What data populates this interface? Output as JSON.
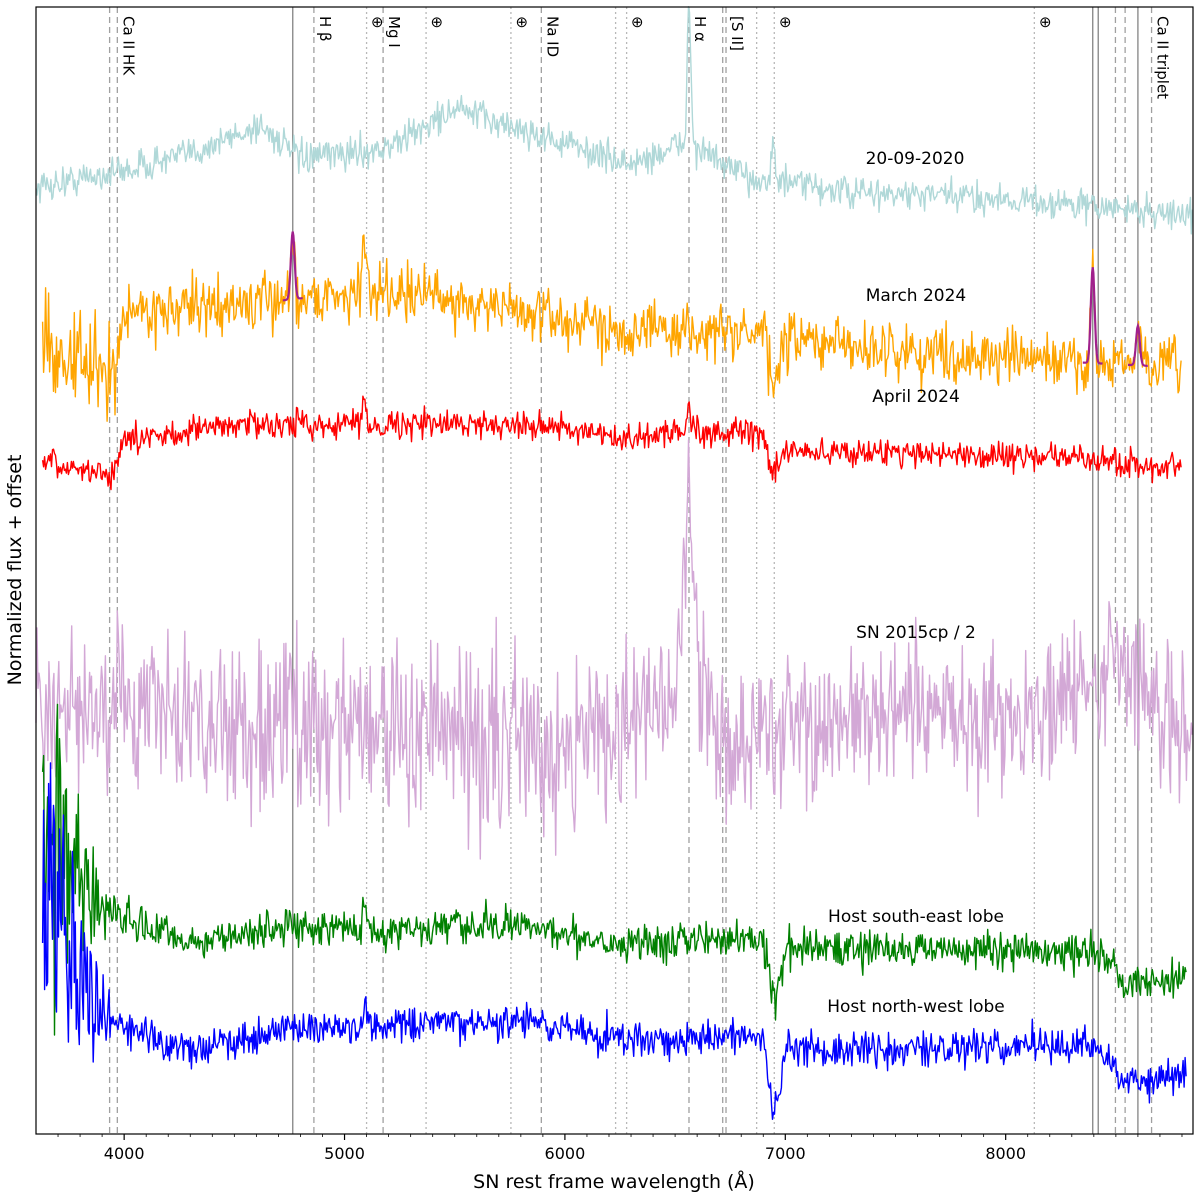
{
  "chart_data": {
    "type": "line",
    "title": "",
    "xlabel": "SN rest frame wavelength (Å)",
    "ylabel": "Normalized flux + offset",
    "xlim": [
      3600,
      8850
    ],
    "ylim": [
      0,
      10
    ],
    "grid": false,
    "x_ticks": [
      4000,
      5000,
      6000,
      7000,
      8000
    ],
    "x_tick_labels": [
      "4000",
      "5000",
      "6000",
      "7000",
      "8000"
    ],
    "line_markers": [
      {
        "label": "Ca II HK",
        "x": [
          3934,
          3969
        ],
        "style": "dashed"
      },
      {
        "label": "H β",
        "x": [
          4861
        ],
        "style": "dashed"
      },
      {
        "label": "⊕",
        "x": [
          5100
        ],
        "style": "dotted"
      },
      {
        "label": "Mg I",
        "x": [
          5175
        ],
        "style": "dashed"
      },
      {
        "label": "⊕",
        "x": [
          5370
        ],
        "style": "dotted"
      },
      {
        "label": "⊕",
        "x": [
          5755
        ],
        "style": "dotted"
      },
      {
        "label": "Na ID",
        "x": [
          5893
        ],
        "style": "dashed"
      },
      {
        "label": "⊕",
        "x": [
          6230,
          6280
        ],
        "style": "dotted"
      },
      {
        "label": "H α",
        "x": [
          6563
        ],
        "style": "dashed"
      },
      {
        "label": "[S II]",
        "x": [
          6716,
          6731
        ],
        "style": "dashed"
      },
      {
        "label": "⊕",
        "x": [
          6870,
          6950
        ],
        "style": "dotted"
      },
      {
        "label": "⊕",
        "x": [
          8130
        ],
        "style": "dotted"
      },
      {
        "label": "Ca II triplet",
        "x": [
          8498,
          8542,
          8662
        ],
        "style": "dashed"
      }
    ],
    "solid_lines_x": [
      4765,
      8395,
      8420,
      8600
    ],
    "series": [
      {
        "name": "20-09-2020",
        "color": "#b0d8d8",
        "offset": 8.5,
        "x_range": [
          3600,
          8850
        ],
        "key_points": [
          [
            3600,
            8.4
          ],
          [
            4000,
            8.55
          ],
          [
            4300,
            8.7
          ],
          [
            4620,
            8.95
          ],
          [
            4800,
            8.65
          ],
          [
            5200,
            8.75
          ],
          [
            5500,
            9.1
          ],
          [
            5900,
            8.85
          ],
          [
            6300,
            8.6
          ],
          [
            6560,
            8.8
          ],
          [
            6800,
            8.5
          ],
          [
            7300,
            8.35
          ],
          [
            8000,
            8.3
          ],
          [
            8850,
            8.15
          ]
        ],
        "peaks": [
          {
            "x": 6563,
            "height": 1.2
          },
          {
            "x": 6945,
            "height": 0.3
          }
        ]
      },
      {
        "name": "March 2024",
        "color": "#ffa500",
        "offset": 7.0,
        "x_range": [
          3630,
          8800
        ],
        "key_points": [
          [
            3630,
            7.0
          ],
          [
            3950,
            6.7
          ],
          [
            4000,
            7.3
          ],
          [
            4500,
            7.35
          ],
          [
            5200,
            7.5
          ],
          [
            5800,
            7.3
          ],
          [
            6200,
            7.15
          ],
          [
            6900,
            7.1
          ],
          [
            6950,
            6.6
          ],
          [
            7000,
            7.05
          ],
          [
            7500,
            6.95
          ],
          [
            8300,
            6.85
          ],
          [
            8800,
            6.8
          ]
        ],
        "peaks": [
          {
            "x": 4765,
            "height": 0.6
          },
          {
            "x": 5090,
            "height": 0.4
          },
          {
            "x": 8395,
            "height": 0.85
          },
          {
            "x": 8600,
            "height": 0.35
          }
        ]
      },
      {
        "name": "April 2024",
        "color": "#ff0000",
        "offset": 6.2,
        "x_range": [
          3630,
          8800
        ],
        "key_points": [
          [
            3630,
            5.95
          ],
          [
            3950,
            5.85
          ],
          [
            4000,
            6.15
          ],
          [
            4500,
            6.3
          ],
          [
            5200,
            6.3
          ],
          [
            5900,
            6.3
          ],
          [
            6250,
            6.15
          ],
          [
            6560,
            6.25
          ],
          [
            6900,
            6.2
          ],
          [
            6950,
            5.85
          ],
          [
            7000,
            6.05
          ],
          [
            7500,
            6.05
          ],
          [
            8300,
            6.0
          ],
          [
            8800,
            5.9
          ]
        ],
        "peaks": [
          {
            "x": 6563,
            "height": 0.2
          },
          {
            "x": 5090,
            "height": 0.2
          }
        ]
      },
      {
        "name": "SN 2015cp / 2",
        "color": "#d3a8d6",
        "offset": 3.6,
        "x_range": [
          3600,
          8850
        ],
        "key_points": [
          [
            3600,
            3.6
          ],
          [
            4000,
            3.8
          ],
          [
            4500,
            3.6
          ],
          [
            5000,
            3.7
          ],
          [
            5500,
            3.5
          ],
          [
            6000,
            3.5
          ],
          [
            6500,
            3.8
          ],
          [
            6560,
            5.6
          ],
          [
            6620,
            3.9
          ],
          [
            6700,
            3.5
          ],
          [
            7000,
            3.6
          ],
          [
            7500,
            3.7
          ],
          [
            8000,
            3.7
          ],
          [
            8400,
            3.9
          ],
          [
            8500,
            4.3
          ],
          [
            8700,
            3.7
          ],
          [
            8850,
            3.7
          ]
        ],
        "peaks": []
      },
      {
        "name": "Host south-east lobe",
        "color": "#008000",
        "offset": 1.7,
        "x_range": [
          3630,
          8820
        ],
        "key_points": [
          [
            3630,
            2.9
          ],
          [
            3800,
            2.2
          ],
          [
            4000,
            1.9
          ],
          [
            4300,
            1.7
          ],
          [
            4800,
            1.85
          ],
          [
            5200,
            1.8
          ],
          [
            5800,
            1.85
          ],
          [
            6250,
            1.7
          ],
          [
            6900,
            1.75
          ],
          [
            6950,
            1.15
          ],
          [
            7000,
            1.65
          ],
          [
            7500,
            1.65
          ],
          [
            8400,
            1.6
          ],
          [
            8550,
            1.35
          ],
          [
            8820,
            1.4
          ]
        ],
        "peaks": [
          {
            "x": 5090,
            "height": 0.25
          }
        ]
      },
      {
        "name": "Host north-west lobe",
        "color": "#0000ff",
        "offset": 1.0,
        "x_range": [
          3630,
          8820
        ],
        "key_points": [
          [
            3630,
            2.5
          ],
          [
            3800,
            1.3
          ],
          [
            4000,
            0.95
          ],
          [
            4300,
            0.75
          ],
          [
            4800,
            0.95
          ],
          [
            5200,
            0.95
          ],
          [
            5800,
            1.0
          ],
          [
            6250,
            0.85
          ],
          [
            6900,
            0.85
          ],
          [
            6950,
            0.15
          ],
          [
            7000,
            0.75
          ],
          [
            7500,
            0.75
          ],
          [
            8400,
            0.8
          ],
          [
            8550,
            0.45
          ],
          [
            8820,
            0.55
          ]
        ],
        "peaks": [
          {
            "x": 5090,
            "height": 0.15
          }
        ]
      }
    ],
    "legend": "inline text labels next to each spectrum"
  }
}
